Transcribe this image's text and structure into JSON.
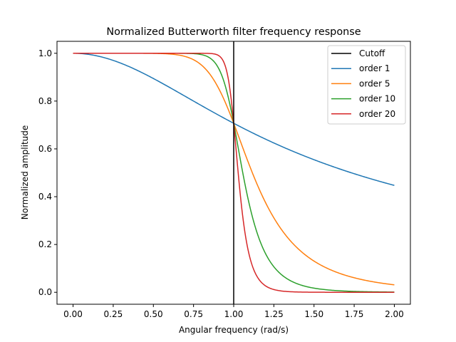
{
  "chart_data": {
    "type": "line",
    "title": "Normalized Butterworth filter frequency response",
    "xlabel": "Angular frequency (rad/s)",
    "ylabel": "Normalized amplitude",
    "xlim": [
      -0.1,
      2.1
    ],
    "ylim": [
      -0.05,
      1.05
    ],
    "xticks": [
      "0.00",
      "0.25",
      "0.50",
      "0.75",
      "1.00",
      "1.25",
      "1.50",
      "1.75",
      "2.00"
    ],
    "yticks": [
      "0.0",
      "0.2",
      "0.4",
      "0.6",
      "0.8",
      "1.0"
    ],
    "grid": false,
    "legend_position": "top-right",
    "cutoff": {
      "name": "Cutoff",
      "x": 1.0,
      "color": "#000000"
    },
    "series": [
      {
        "name": "order 1",
        "order": 1,
        "color": "#1f77b4"
      },
      {
        "name": "order 5",
        "order": 5,
        "color": "#ff7f0e"
      },
      {
        "name": "order 10",
        "order": 10,
        "color": "#2ca02c"
      },
      {
        "name": "order 20",
        "order": 20,
        "color": "#d62728"
      }
    ],
    "x_range": [
      0,
      2
    ]
  }
}
